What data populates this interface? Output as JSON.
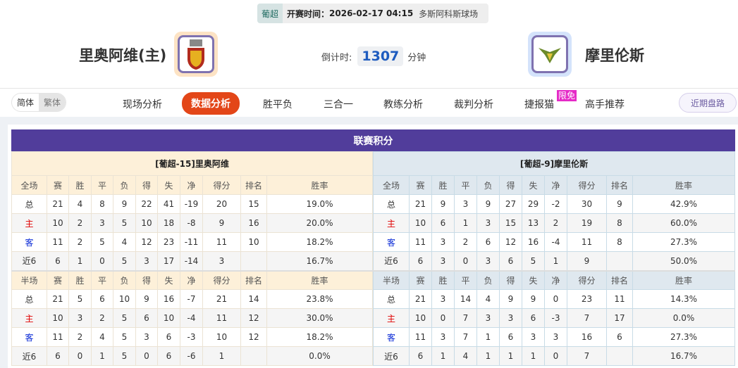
{
  "match": {
    "league": "葡超",
    "kickoff_label": "开赛时间：",
    "kickoff": "2026-02-17 04:15",
    "venue": "多斯阿科斯球场",
    "home": "里奥阿维(主)",
    "away": "摩里伦斯",
    "countdown_label": "倒计时:",
    "countdown": "1307",
    "countdown_unit": "分钟"
  },
  "lang": {
    "simplified": "简体",
    "traditional": "繁体"
  },
  "tabs": [
    {
      "label": "现场分析"
    },
    {
      "label": "数据分析",
      "active": true
    },
    {
      "label": "胜平负"
    },
    {
      "label": "三合一"
    },
    {
      "label": "教练分析"
    },
    {
      "label": "裁判分析"
    },
    {
      "label": "捷报猫",
      "badge": "限免"
    },
    {
      "label": "高手推荐"
    }
  ],
  "recent_button": "近期盘路",
  "standings": {
    "title": "联赛积分",
    "columns": [
      "赛",
      "胜",
      "平",
      "负",
      "得",
      "失",
      "净",
      "得分",
      "排名",
      "胜率"
    ],
    "home": {
      "header": "[葡超-15]里奥阿维",
      "full": {
        "label": "全场",
        "rows": [
          [
            "总",
            "21",
            "4",
            "8",
            "9",
            "22",
            "41",
            "-19",
            "20",
            "15",
            "19.0%"
          ],
          [
            "主",
            "10",
            "2",
            "3",
            "5",
            "10",
            "18",
            "-8",
            "9",
            "16",
            "20.0%"
          ],
          [
            "客",
            "11",
            "2",
            "5",
            "4",
            "12",
            "23",
            "-11",
            "11",
            "10",
            "18.2%"
          ],
          [
            "近6",
            "6",
            "1",
            "0",
            "5",
            "3",
            "17",
            "-14",
            "3",
            "",
            "16.7%"
          ]
        ]
      },
      "half": {
        "label": "半场",
        "rows": [
          [
            "总",
            "21",
            "5",
            "6",
            "10",
            "9",
            "16",
            "-7",
            "21",
            "14",
            "23.8%"
          ],
          [
            "主",
            "10",
            "3",
            "2",
            "5",
            "6",
            "10",
            "-4",
            "11",
            "12",
            "30.0%"
          ],
          [
            "客",
            "11",
            "2",
            "4",
            "5",
            "3",
            "6",
            "-3",
            "10",
            "12",
            "18.2%"
          ],
          [
            "近6",
            "6",
            "0",
            "1",
            "5",
            "0",
            "6",
            "-6",
            "1",
            "",
            "0.0%"
          ]
        ]
      }
    },
    "away": {
      "header": "[葡超-9]摩里伦斯",
      "full": {
        "label": "全场",
        "rows": [
          [
            "总",
            "21",
            "9",
            "3",
            "9",
            "27",
            "29",
            "-2",
            "30",
            "9",
            "42.9%"
          ],
          [
            "主",
            "10",
            "6",
            "1",
            "3",
            "15",
            "13",
            "2",
            "19",
            "8",
            "60.0%"
          ],
          [
            "客",
            "11",
            "3",
            "2",
            "6",
            "12",
            "16",
            "-4",
            "11",
            "8",
            "27.3%"
          ],
          [
            "近6",
            "6",
            "3",
            "0",
            "3",
            "6",
            "5",
            "1",
            "9",
            "",
            "50.0%"
          ]
        ]
      },
      "half": {
        "label": "半场",
        "rows": [
          [
            "总",
            "21",
            "3",
            "14",
            "4",
            "9",
            "9",
            "0",
            "23",
            "11",
            "14.3%"
          ],
          [
            "主",
            "10",
            "0",
            "7",
            "3",
            "3",
            "6",
            "-3",
            "7",
            "17",
            "0.0%"
          ],
          [
            "客",
            "11",
            "3",
            "7",
            "1",
            "6",
            "3",
            "3",
            "16",
            "6",
            "27.3%"
          ],
          [
            "近6",
            "6",
            "1",
            "4",
            "1",
            "1",
            "1",
            "0",
            "7",
            "",
            "16.7%"
          ]
        ]
      }
    }
  },
  "colors": {
    "title_bar": "#513d9b",
    "active_tab": "#e34618",
    "home_label": "#e00000",
    "away_label": "#0b2bd6"
  }
}
